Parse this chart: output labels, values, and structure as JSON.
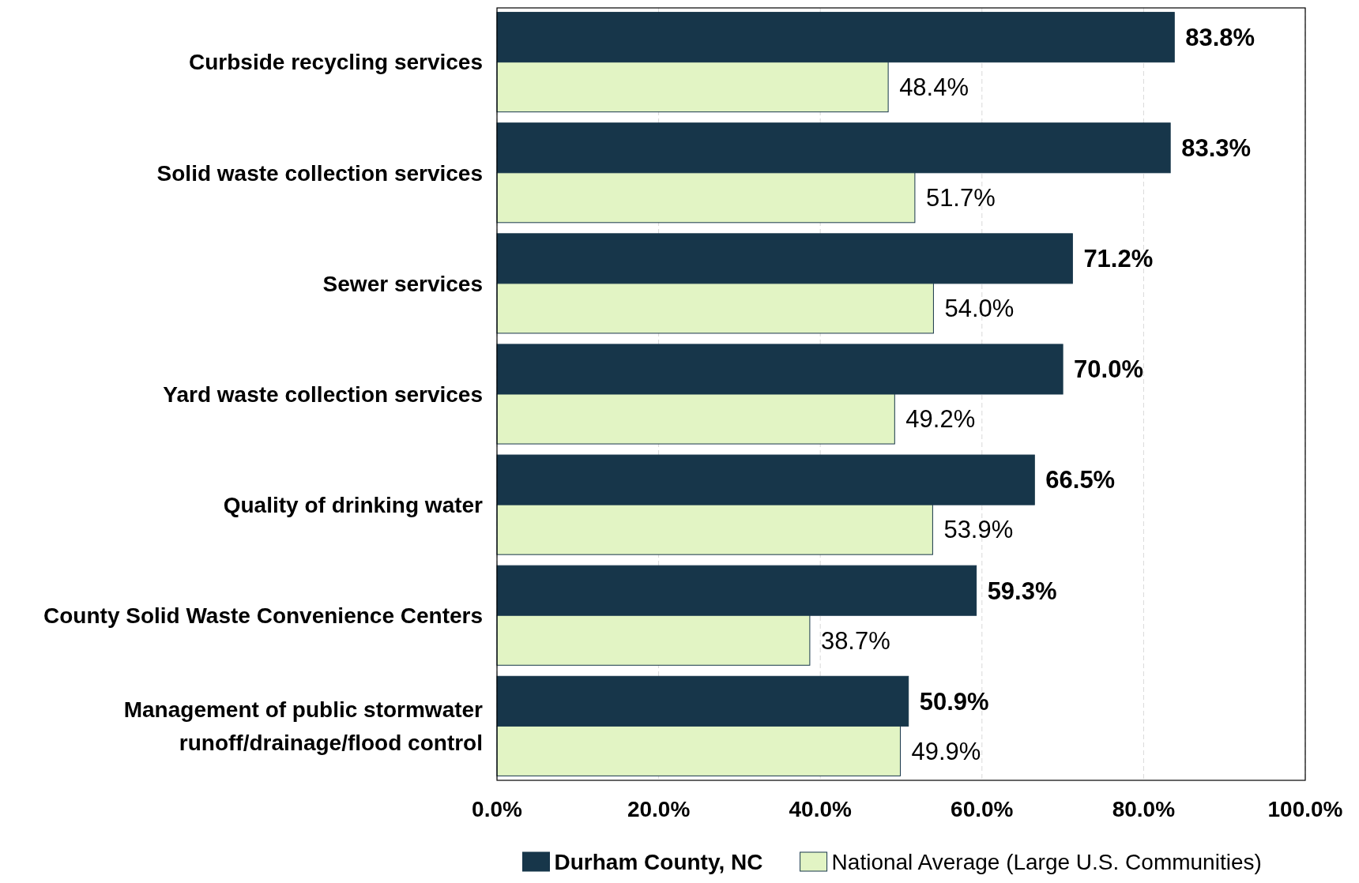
{
  "chart_data": {
    "type": "bar",
    "orientation": "horizontal",
    "categories": [
      "Curbside recycling services",
      "Solid waste collection services",
      "Sewer services",
      "Yard waste collection services",
      "Quality of drinking water",
      "County Solid Waste Convenience Centers",
      "Management of public stormwater runoff/drainage/flood control"
    ],
    "series": [
      {
        "name": "Durham County, NC",
        "color": "#17364a",
        "values": [
          83.8,
          83.3,
          71.2,
          70.0,
          66.5,
          59.3,
          50.9
        ],
        "value_labels": [
          "83.8%",
          "83.3%",
          "71.2%",
          "70.0%",
          "66.5%",
          "59.3%",
          "50.9%"
        ]
      },
      {
        "name": "National Average (Large U.S. Communities)",
        "color": "#e2f4c4",
        "values": [
          48.4,
          51.7,
          54.0,
          49.2,
          53.9,
          38.7,
          49.9
        ],
        "value_labels": [
          "48.4%",
          "51.7%",
          "54.0%",
          "49.2%",
          "53.9%",
          "38.7%",
          "49.9%"
        ]
      }
    ],
    "xlim": [
      0,
      100
    ],
    "xticks": [
      {
        "value": 0,
        "label": "0.0%"
      },
      {
        "value": 20,
        "label": "20.0%"
      },
      {
        "value": 40,
        "label": "40.0%"
      },
      {
        "value": 60,
        "label": "60.0%"
      },
      {
        "value": 80,
        "label": "80.0%"
      },
      {
        "value": 100,
        "label": "100.0%"
      }
    ],
    "grid": "x",
    "legend": "bottom"
  }
}
